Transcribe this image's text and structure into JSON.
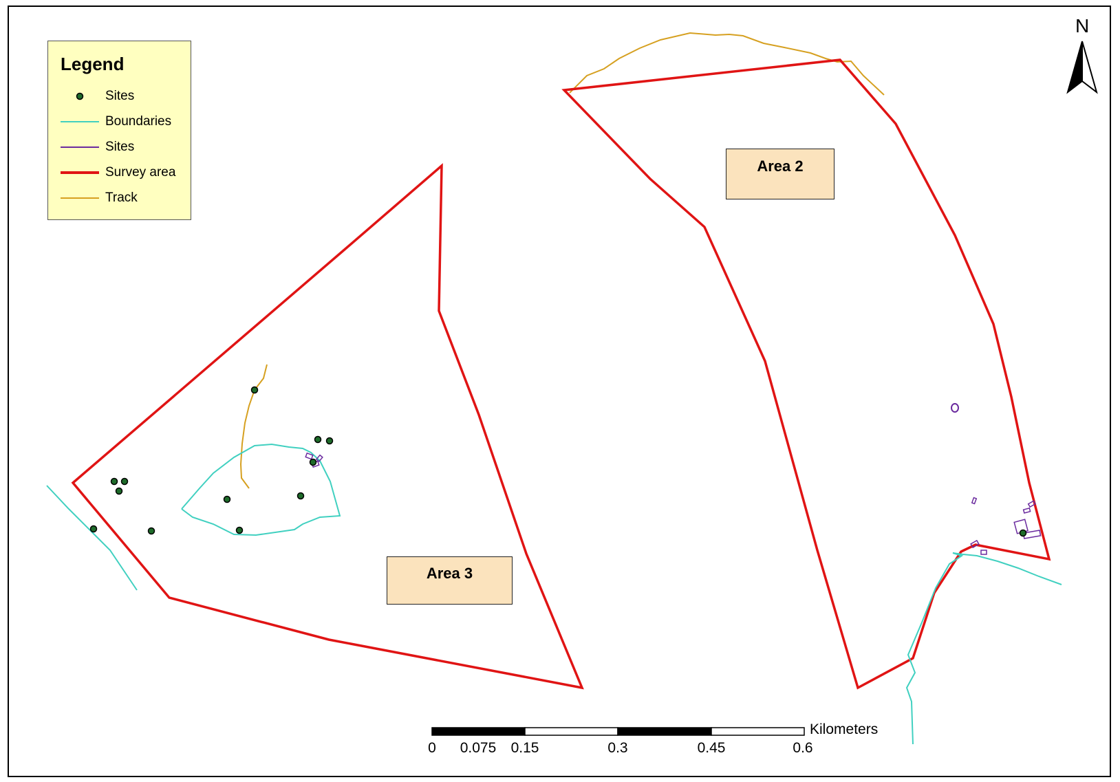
{
  "legend": {
    "title": "Legend",
    "items": [
      {
        "label": "Sites",
        "symbol": "point",
        "color": "#1e6b2a"
      },
      {
        "label": "Boundaries",
        "symbol": "line",
        "color": "#40d0c0"
      },
      {
        "label": "Sites",
        "symbol": "line",
        "color": "#6a2a9e"
      },
      {
        "label": "Survey area",
        "symbol": "thick-line",
        "color": "#e01414"
      },
      {
        "label": "Track",
        "symbol": "line",
        "color": "#d6a020"
      }
    ]
  },
  "areas": {
    "area2": "Area 2",
    "area3": "Area 3"
  },
  "north_arrow": {
    "letter": "N"
  },
  "scale_bar": {
    "unit": "Kilometers",
    "ticks": [
      "0",
      "0.075",
      "0.15",
      "0.3",
      "0.45",
      "0.6"
    ]
  },
  "colors": {
    "survey_area": "#e01414",
    "boundaries": "#40d0c0",
    "track": "#d6a020",
    "sites_line": "#6a2a9e",
    "sites_point": "#1e6b2a",
    "legend_bg": "#ffffc0",
    "label_bg": "#fbe3bd"
  }
}
